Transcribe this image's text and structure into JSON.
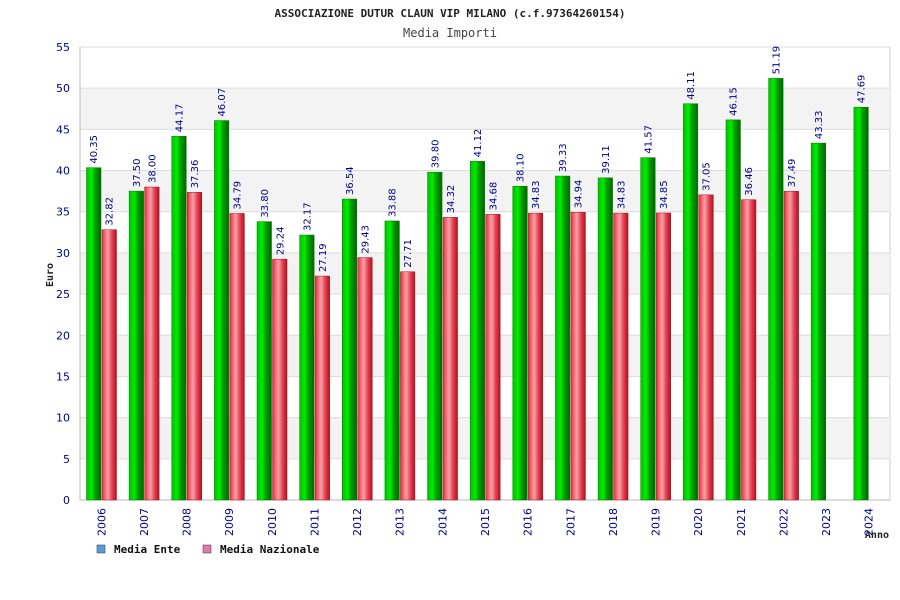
{
  "chart_data": {
    "type": "bar",
    "title": "ASSOCIAZIONE DUTUR CLAUN VIP MILANO (c.f.97364260154)",
    "subtitle": "Media Importi",
    "xlabel": "Anno",
    "ylabel": "Euro",
    "ylim": [
      0,
      55
    ],
    "yticks": [
      0,
      5,
      10,
      15,
      20,
      25,
      30,
      35,
      40,
      45,
      50,
      55
    ],
    "grid": true,
    "legend_position": "bottom-left",
    "categories": [
      "2006",
      "2007",
      "2008",
      "2009",
      "2010",
      "2011",
      "2012",
      "2013",
      "2014",
      "2015",
      "2016",
      "2017",
      "2018",
      "2019",
      "2020",
      "2021",
      "2022",
      "2023",
      "2024"
    ],
    "series": [
      {
        "name": "Media Ente",
        "color": "#00aa00",
        "legend_color": "#5b9bd5",
        "values": [
          40.35,
          37.5,
          44.17,
          46.07,
          33.8,
          32.17,
          36.54,
          33.88,
          39.8,
          41.12,
          38.1,
          39.33,
          39.11,
          41.57,
          48.11,
          46.15,
          51.19,
          43.33,
          47.69
        ],
        "labels": [
          "40.35",
          "37.50",
          "44.17",
          "46.07",
          "33.80",
          "32.17",
          "36.54",
          "33.88",
          "39.80",
          "41.12",
          "38.10",
          "39.33",
          "39.11",
          "41.57",
          "48.11",
          "46.15",
          "51.19",
          "43.33",
          "47.69"
        ]
      },
      {
        "name": "Media Nazionale",
        "color": "#e0303a",
        "legend_color": "#e07aa0",
        "values": [
          32.82,
          38.0,
          37.36,
          34.79,
          29.24,
          27.19,
          29.43,
          27.71,
          34.32,
          34.68,
          34.83,
          34.94,
          34.83,
          34.85,
          37.05,
          36.46,
          37.49,
          null,
          null
        ],
        "labels": [
          "32.82",
          "38.00",
          "37.36",
          "34.79",
          "29.24",
          "27.19",
          "29.43",
          "27.71",
          "34.32",
          "34.68",
          "34.83",
          "34.94",
          "34.83",
          "34.85",
          "37.05",
          "36.46",
          "37.49",
          "",
          ""
        ]
      }
    ]
  }
}
